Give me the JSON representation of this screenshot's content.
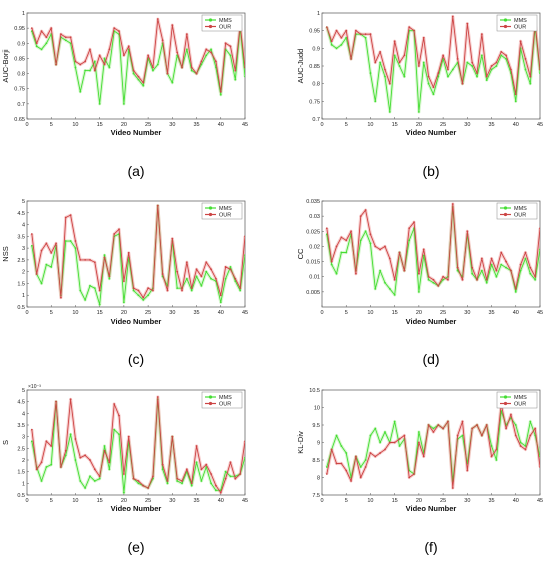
{
  "colors": {
    "mms": "#44dd33",
    "our": "#cc4444",
    "our_glow": "#f0a5a5",
    "mms_glow": "#b7f0a5"
  },
  "chart_data": [
    {
      "type": "line",
      "label": "(a)",
      "ylabel": "AUC-Borji",
      "xlabel": "Video Number",
      "xlim": [
        0,
        45
      ],
      "ylim": [
        0.65,
        1.0
      ],
      "xticks": [
        0,
        5,
        10,
        15,
        20,
        25,
        30,
        35,
        40,
        45
      ],
      "yticks": [
        0.65,
        0.7,
        0.75,
        0.8,
        0.85,
        0.9,
        0.95,
        1
      ],
      "ytick_labels": [
        "0.65",
        "0.7",
        "0.75",
        "0.8",
        "0.85",
        "0.9",
        "0.95",
        "1"
      ],
      "legend_position": "top-right",
      "x": [
        1,
        2,
        3,
        4,
        5,
        6,
        7,
        8,
        9,
        10,
        11,
        12,
        13,
        14,
        15,
        16,
        17,
        18,
        19,
        20,
        21,
        22,
        23,
        24,
        25,
        26,
        27,
        28,
        29,
        30,
        31,
        32,
        33,
        34,
        35,
        36,
        37,
        38,
        39,
        40,
        41,
        42,
        43,
        44,
        45
      ],
      "series": [
        {
          "name": "MMS",
          "values": [
            0.94,
            0.89,
            0.88,
            0.9,
            0.93,
            0.83,
            0.92,
            0.91,
            0.9,
            0.82,
            0.74,
            0.81,
            0.81,
            0.84,
            0.7,
            0.85,
            0.82,
            0.94,
            0.93,
            0.7,
            0.88,
            0.8,
            0.78,
            0.76,
            0.85,
            0.81,
            0.83,
            0.9,
            0.8,
            0.77,
            0.86,
            0.82,
            0.88,
            0.81,
            0.8,
            0.83,
            0.86,
            0.88,
            0.82,
            0.73,
            0.88,
            0.86,
            0.78,
            0.95,
            0.79
          ]
        },
        {
          "name": "OUR",
          "values": [
            0.95,
            0.9,
            0.94,
            0.92,
            0.95,
            0.83,
            0.93,
            0.92,
            0.92,
            0.84,
            0.83,
            0.84,
            0.88,
            0.81,
            0.86,
            0.83,
            0.88,
            0.95,
            0.94,
            0.86,
            0.89,
            0.81,
            0.79,
            0.77,
            0.86,
            0.82,
            0.98,
            0.91,
            0.8,
            0.96,
            0.87,
            0.82,
            0.93,
            0.82,
            0.8,
            0.84,
            0.88,
            0.87,
            0.84,
            0.74,
            0.9,
            0.89,
            0.81,
            0.96,
            0.82
          ]
        }
      ]
    },
    {
      "type": "line",
      "label": "(b)",
      "ylabel": "AUC-Judd",
      "xlabel": "Video Number",
      "xlim": [
        0,
        45
      ],
      "ylim": [
        0.7,
        1.0
      ],
      "xticks": [
        0,
        5,
        10,
        15,
        20,
        25,
        30,
        35,
        40,
        45
      ],
      "yticks": [
        0.7,
        0.75,
        0.8,
        0.85,
        0.9,
        0.95,
        1
      ],
      "ytick_labels": [
        "0.7",
        "0.75",
        "0.8",
        "0.85",
        "0.9",
        "0.95",
        "1"
      ],
      "legend_position": "top-right",
      "x": [
        1,
        2,
        3,
        4,
        5,
        6,
        7,
        8,
        9,
        10,
        11,
        12,
        13,
        14,
        15,
        16,
        17,
        18,
        19,
        20,
        21,
        22,
        23,
        24,
        25,
        26,
        27,
        28,
        29,
        30,
        31,
        32,
        33,
        34,
        35,
        36,
        37,
        38,
        39,
        40,
        41,
        42,
        43,
        44,
        45
      ],
      "series": [
        {
          "name": "MMS",
          "values": [
            0.96,
            0.91,
            0.9,
            0.91,
            0.93,
            0.87,
            0.94,
            0.94,
            0.93,
            0.83,
            0.75,
            0.86,
            0.82,
            0.72,
            0.88,
            0.85,
            0.82,
            0.95,
            0.95,
            0.72,
            0.86,
            0.8,
            0.77,
            0.82,
            0.87,
            0.82,
            0.84,
            0.86,
            0.8,
            0.86,
            0.85,
            0.82,
            0.88,
            0.81,
            0.84,
            0.85,
            0.88,
            0.87,
            0.83,
            0.75,
            0.9,
            0.84,
            0.8,
            0.96,
            0.83
          ]
        },
        {
          "name": "OUR",
          "values": [
            0.96,
            0.92,
            0.95,
            0.93,
            0.95,
            0.87,
            0.95,
            0.94,
            0.94,
            0.94,
            0.86,
            0.89,
            0.84,
            0.8,
            0.92,
            0.86,
            0.88,
            0.96,
            0.95,
            0.85,
            0.93,
            0.82,
            0.79,
            0.83,
            0.88,
            0.84,
            0.99,
            0.87,
            0.8,
            0.97,
            0.86,
            0.83,
            0.94,
            0.82,
            0.85,
            0.86,
            0.89,
            0.88,
            0.84,
            0.77,
            0.92,
            0.87,
            0.82,
            0.97,
            0.84
          ]
        }
      ]
    },
    {
      "type": "line",
      "label": "(c)",
      "ylabel": "NSS",
      "xlabel": "Video Number",
      "xlim": [
        0,
        45
      ],
      "ylim": [
        0.5,
        5.0
      ],
      "xticks": [
        0,
        5,
        10,
        15,
        20,
        25,
        30,
        35,
        40,
        45
      ],
      "yticks": [
        0.5,
        1,
        1.5,
        2,
        2.5,
        3,
        3.5,
        4,
        4.5,
        5
      ],
      "ytick_labels": [
        "0.5",
        "1",
        "1.5",
        "2",
        "2.5",
        "3",
        "3.5",
        "4",
        "4.5",
        "5"
      ],
      "legend_position": "top-right",
      "x": [
        1,
        2,
        3,
        4,
        5,
        6,
        7,
        8,
        9,
        10,
        11,
        12,
        13,
        14,
        15,
        16,
        17,
        18,
        19,
        20,
        21,
        22,
        23,
        24,
        25,
        26,
        27,
        28,
        29,
        30,
        31,
        32,
        33,
        34,
        35,
        36,
        37,
        38,
        39,
        40,
        41,
        42,
        43,
        44,
        45
      ],
      "series": [
        {
          "name": "MMS",
          "values": [
            3.1,
            1.9,
            1.5,
            2.3,
            2.2,
            3.1,
            1.0,
            3.3,
            3.3,
            3.0,
            1.2,
            0.8,
            1.4,
            1.3,
            0.6,
            2.7,
            1.7,
            3.5,
            3.6,
            0.7,
            2.6,
            1.2,
            1.0,
            0.8,
            1.0,
            1.3,
            4.8,
            1.8,
            1.4,
            3.3,
            1.3,
            1.3,
            1.7,
            1.2,
            1.8,
            1.4,
            2.0,
            1.7,
            1.6,
            0.7,
            1.7,
            2.2,
            1.6,
            1.2,
            2.7
          ]
        },
        {
          "name": "OUR",
          "values": [
            3.6,
            1.9,
            2.9,
            3.2,
            2.8,
            3.2,
            0.9,
            4.3,
            4.4,
            3.3,
            2.5,
            2.5,
            2.5,
            2.4,
            1.2,
            2.6,
            1.8,
            3.6,
            3.8,
            1.6,
            2.8,
            1.3,
            1.2,
            0.9,
            1.3,
            1.2,
            4.8,
            1.9,
            1.2,
            3.4,
            2.0,
            1.2,
            2.4,
            1.3,
            2.1,
            1.8,
            2.4,
            2.1,
            1.7,
            1.0,
            2.2,
            2.1,
            1.7,
            1.3,
            3.5
          ]
        }
      ]
    },
    {
      "type": "line",
      "label": "(d)",
      "ylabel": "CC",
      "xlabel": "Video Number",
      "xlim": [
        0,
        45
      ],
      "ylim": [
        0.0,
        0.035
      ],
      "xticks": [
        0,
        5,
        10,
        15,
        20,
        25,
        30,
        35,
        40,
        45
      ],
      "yticks": [
        0.005,
        0.01,
        0.015,
        0.02,
        0.025,
        0.03,
        0.035
      ],
      "ytick_labels": [
        "0.005",
        "0.01",
        "0.015",
        "0.02",
        "0.025",
        "0.03",
        "0.035"
      ],
      "legend_position": "top-right",
      "x": [
        1,
        2,
        3,
        4,
        5,
        6,
        7,
        8,
        9,
        10,
        11,
        12,
        13,
        14,
        15,
        16,
        17,
        18,
        19,
        20,
        21,
        22,
        23,
        24,
        25,
        26,
        27,
        28,
        29,
        30,
        31,
        32,
        33,
        34,
        35,
        36,
        37,
        38,
        39,
        40,
        41,
        42,
        43,
        44,
        45
      ],
      "series": [
        {
          "name": "MMS",
          "values": [
            0.024,
            0.014,
            0.011,
            0.018,
            0.018,
            0.024,
            0.012,
            0.022,
            0.025,
            0.021,
            0.006,
            0.012,
            0.008,
            0.006,
            0.004,
            0.018,
            0.012,
            0.022,
            0.026,
            0.005,
            0.017,
            0.009,
            0.008,
            0.007,
            0.009,
            0.01,
            0.033,
            0.012,
            0.01,
            0.024,
            0.011,
            0.009,
            0.012,
            0.008,
            0.014,
            0.01,
            0.014,
            0.013,
            0.012,
            0.005,
            0.012,
            0.016,
            0.011,
            0.009,
            0.019
          ]
        },
        {
          "name": "OUR",
          "values": [
            0.026,
            0.015,
            0.02,
            0.023,
            0.022,
            0.025,
            0.011,
            0.03,
            0.032,
            0.024,
            0.02,
            0.019,
            0.02,
            0.016,
            0.009,
            0.018,
            0.012,
            0.026,
            0.028,
            0.011,
            0.019,
            0.01,
            0.009,
            0.007,
            0.01,
            0.009,
            0.034,
            0.013,
            0.009,
            0.025,
            0.013,
            0.009,
            0.016,
            0.009,
            0.016,
            0.012,
            0.018,
            0.015,
            0.012,
            0.006,
            0.014,
            0.018,
            0.013,
            0.01,
            0.026
          ]
        }
      ]
    },
    {
      "type": "line",
      "label": "(e)",
      "ylabel": "S",
      "xlabel": "Video Number",
      "y_exponent": "×10⁻³",
      "xlim": [
        0,
        45
      ],
      "ylim": [
        0.5,
        5.0
      ],
      "xticks": [
        0,
        5,
        10,
        15,
        20,
        25,
        30,
        35,
        40,
        45
      ],
      "yticks": [
        0.5,
        1,
        1.5,
        2,
        2.5,
        3,
        3.5,
        4,
        4.5,
        5
      ],
      "ytick_labels": [
        "0.5",
        "1",
        "1.5",
        "2",
        "2.5",
        "3",
        "3.5",
        "4",
        "4.5",
        "5"
      ],
      "legend_position": "top-right",
      "x": [
        1,
        2,
        3,
        4,
        5,
        6,
        7,
        8,
        9,
        10,
        11,
        12,
        13,
        14,
        15,
        16,
        17,
        18,
        19,
        20,
        21,
        22,
        23,
        24,
        25,
        26,
        27,
        28,
        29,
        30,
        31,
        32,
        33,
        34,
        35,
        36,
        37,
        38,
        39,
        40,
        41,
        42,
        43,
        44,
        45
      ],
      "series": [
        {
          "name": "MMS",
          "values": [
            2.8,
            1.7,
            1.1,
            1.7,
            1.8,
            4.5,
            1.7,
            2.2,
            3.1,
            2.0,
            1.1,
            0.8,
            1.3,
            1.1,
            1.2,
            2.6,
            1.6,
            3.3,
            3.1,
            0.6,
            2.8,
            1.2,
            1.0,
            0.9,
            0.8,
            1.2,
            4.6,
            1.6,
            1.0,
            3.0,
            1.1,
            1.0,
            1.5,
            0.9,
            1.9,
            1.1,
            1.7,
            1.0,
            0.7,
            0.7,
            1.5,
            1.3,
            1.3,
            1.4,
            2.1
          ]
        },
        {
          "name": "OUR",
          "values": [
            3.3,
            1.6,
            1.9,
            2.8,
            2.6,
            4.5,
            1.7,
            2.4,
            4.6,
            2.9,
            2.1,
            2.2,
            2.0,
            1.6,
            1.3,
            2.4,
            1.9,
            4.4,
            3.9,
            1.4,
            3.0,
            1.2,
            1.1,
            0.9,
            0.8,
            1.3,
            4.7,
            1.8,
            1.1,
            3.0,
            1.2,
            1.1,
            1.6,
            1.0,
            2.6,
            1.6,
            1.8,
            1.4,
            0.9,
            0.6,
            1.2,
            1.9,
            1.2,
            1.4,
            2.8
          ]
        }
      ]
    },
    {
      "type": "line",
      "label": "(f)",
      "ylabel": "KL-Div",
      "xlabel": "Video Number",
      "xlim": [
        0,
        45
      ],
      "ylim": [
        7.5,
        10.5
      ],
      "xticks": [
        0,
        5,
        10,
        15,
        20,
        25,
        30,
        35,
        40,
        45
      ],
      "yticks": [
        7.5,
        8,
        8.5,
        9,
        9.5,
        10,
        10.5
      ],
      "ytick_labels": [
        "7.5",
        "8",
        "8.5",
        "9",
        "9.5",
        "10",
        "10.5"
      ],
      "legend_position": "top-right",
      "x": [
        1,
        2,
        3,
        4,
        5,
        6,
        7,
        8,
        9,
        10,
        11,
        12,
        13,
        14,
        15,
        16,
        17,
        18,
        19,
        20,
        21,
        22,
        23,
        24,
        25,
        26,
        27,
        28,
        29,
        30,
        31,
        32,
        33,
        34,
        35,
        36,
        37,
        38,
        39,
        40,
        41,
        42,
        43,
        44,
        45
      ],
      "series": [
        {
          "name": "MMS",
          "values": [
            8.3,
            8.8,
            9.2,
            8.9,
            8.7,
            8.0,
            8.6,
            8.3,
            8.5,
            9.2,
            9.4,
            9.0,
            9.3,
            9.0,
            9.6,
            8.9,
            9.1,
            8.2,
            8.1,
            9.3,
            8.7,
            9.5,
            9.4,
            9.5,
            9.4,
            9.6,
            7.9,
            9.1,
            9.2,
            8.4,
            9.4,
            9.5,
            9.2,
            9.5,
            8.9,
            8.5,
            9.9,
            9.5,
            9.7,
            9.5,
            9.0,
            8.9,
            9.6,
            9.2,
            8.6
          ]
        },
        {
          "name": "OUR",
          "values": [
            8.1,
            8.8,
            8.4,
            8.4,
            8.2,
            7.9,
            8.6,
            8.0,
            8.3,
            8.7,
            8.6,
            8.7,
            8.8,
            9.0,
            9.0,
            9.1,
            9.2,
            8.0,
            8.1,
            9.0,
            8.6,
            9.5,
            9.3,
            9.5,
            9.4,
            9.6,
            7.7,
            9.2,
            9.6,
            8.2,
            9.4,
            9.5,
            9.2,
            9.5,
            8.6,
            8.8,
            10.1,
            9.4,
            9.8,
            9.2,
            8.9,
            8.8,
            9.2,
            9.4,
            8.3
          ]
        }
      ]
    }
  ]
}
